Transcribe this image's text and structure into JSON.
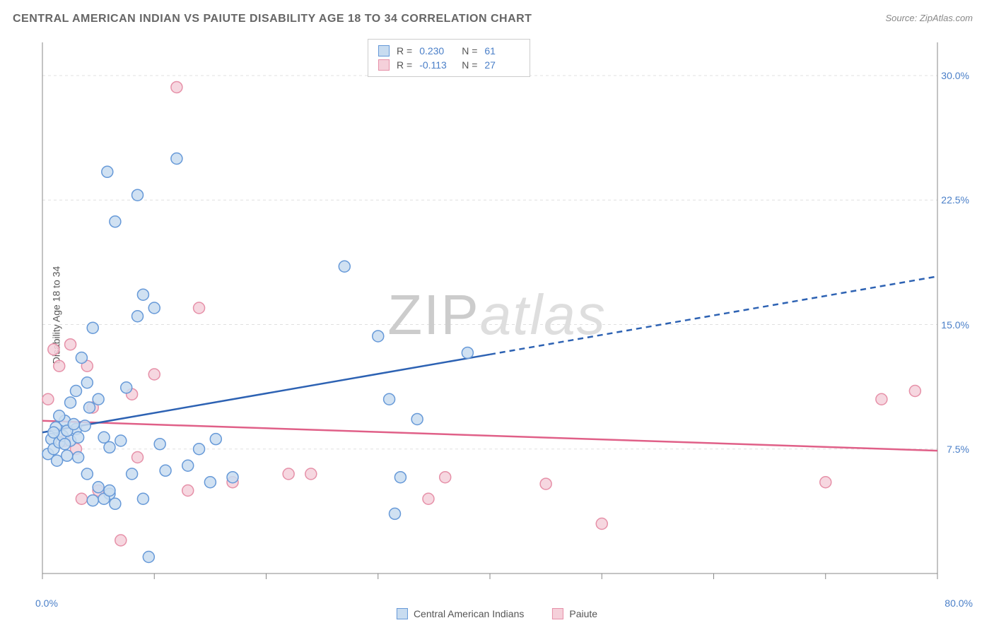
{
  "title": "CENTRAL AMERICAN INDIAN VS PAIUTE DISABILITY AGE 18 TO 34 CORRELATION CHART",
  "source": "Source: ZipAtlas.com",
  "y_axis_label": "Disability Age 18 to 34",
  "watermark": {
    "zip": "ZIP",
    "atlas": "atlas"
  },
  "chart": {
    "type": "scatter",
    "background_color": "#ffffff",
    "grid_color": "#e0e0e0",
    "axis_line_color": "#888888",
    "x_axis": {
      "min": 0,
      "max": 80,
      "ticks": [
        0,
        10,
        20,
        30,
        40,
        50,
        60,
        70,
        80
      ],
      "label_min": "0.0%",
      "label_max": "80.0%",
      "label_color": "#4a7fc8"
    },
    "y_axis": {
      "min": 0,
      "max": 32,
      "grid_ticks": [
        7.5,
        15.0,
        22.5,
        30.0
      ],
      "grid_labels": [
        "7.5%",
        "15.0%",
        "22.5%",
        "30.0%"
      ],
      "label_color": "#4a7fc8"
    },
    "series": [
      {
        "name": "Central American Indians",
        "marker_fill": "#c8dcf0",
        "marker_stroke": "#6699d8",
        "marker_radius": 8,
        "trend_color": "#2d62b3",
        "trend_width": 2.5,
        "trend_start": [
          0,
          8.5
        ],
        "trend_solid_end": [
          40,
          13.2
        ],
        "trend_dash_end": [
          80,
          17.9
        ],
        "R": "0.230",
        "N": "61",
        "points": [
          [
            0.5,
            7.2
          ],
          [
            0.8,
            8.1
          ],
          [
            1.0,
            7.5
          ],
          [
            1.2,
            8.8
          ],
          [
            1.3,
            6.8
          ],
          [
            1.5,
            7.9
          ],
          [
            1.8,
            8.3
          ],
          [
            2.0,
            9.2
          ],
          [
            2.2,
            7.1
          ],
          [
            2.5,
            8.0
          ],
          [
            2.5,
            10.3
          ],
          [
            3.0,
            8.7
          ],
          [
            3.0,
            11.0
          ],
          [
            3.2,
            7.0
          ],
          [
            3.5,
            13.0
          ],
          [
            4.0,
            11.5
          ],
          [
            4.0,
            6.0
          ],
          [
            4.5,
            14.8
          ],
          [
            4.5,
            4.4
          ],
          [
            5.0,
            10.5
          ],
          [
            5.0,
            5.2
          ],
          [
            5.5,
            8.2
          ],
          [
            5.8,
            24.2
          ],
          [
            6.0,
            7.6
          ],
          [
            6.0,
            4.8
          ],
          [
            6.5,
            21.2
          ],
          [
            7.0,
            8.0
          ],
          [
            7.5,
            11.2
          ],
          [
            8.0,
            6.0
          ],
          [
            8.5,
            15.5
          ],
          [
            8.5,
            22.8
          ],
          [
            9.0,
            16.8
          ],
          [
            9.0,
            4.5
          ],
          [
            9.5,
            1.0
          ],
          [
            10.0,
            16.0
          ],
          [
            10.5,
            7.8
          ],
          [
            11.0,
            6.2
          ],
          [
            12.0,
            25.0
          ],
          [
            13.0,
            6.5
          ],
          [
            14.0,
            7.5
          ],
          [
            15.0,
            5.5
          ],
          [
            15.5,
            8.1
          ],
          [
            17.0,
            5.8
          ],
          [
            27.0,
            18.5
          ],
          [
            30.0,
            14.3
          ],
          [
            31.0,
            10.5
          ],
          [
            31.5,
            3.6
          ],
          [
            32.0,
            5.8
          ],
          [
            33.5,
            9.3
          ],
          [
            38.0,
            13.3
          ],
          [
            1.0,
            8.5
          ],
          [
            1.5,
            9.5
          ],
          [
            2.0,
            7.8
          ],
          [
            2.2,
            8.6
          ],
          [
            2.8,
            9.0
          ],
          [
            3.2,
            8.2
          ],
          [
            3.8,
            8.9
          ],
          [
            4.2,
            10.0
          ],
          [
            5.5,
            4.5
          ],
          [
            6.0,
            5.0
          ],
          [
            6.5,
            4.2
          ]
        ]
      },
      {
        "name": "Paiute",
        "marker_fill": "#f5d0da",
        "marker_stroke": "#e690a8",
        "trend_color": "#e06088",
        "trend_width": 2.5,
        "trend_start": [
          0,
          9.2
        ],
        "trend_end": [
          80,
          7.4
        ],
        "R": "-0.113",
        "N": "27",
        "points": [
          [
            0.5,
            10.5
          ],
          [
            1.0,
            13.5
          ],
          [
            1.5,
            12.5
          ],
          [
            2.0,
            8.0
          ],
          [
            2.5,
            13.8
          ],
          [
            3.0,
            7.5
          ],
          [
            3.5,
            4.5
          ],
          [
            4.0,
            12.5
          ],
          [
            4.5,
            10.0
          ],
          [
            5.0,
            5.0
          ],
          [
            7.0,
            2.0
          ],
          [
            8.0,
            10.8
          ],
          [
            10.0,
            12.0
          ],
          [
            12.0,
            29.3
          ],
          [
            13.0,
            5.0
          ],
          [
            14.0,
            16.0
          ],
          [
            17.0,
            5.5
          ],
          [
            22.0,
            6.0
          ],
          [
            24.0,
            6.0
          ],
          [
            34.5,
            4.5
          ],
          [
            36.0,
            5.8
          ],
          [
            45.0,
            5.4
          ],
          [
            50.0,
            3.0
          ],
          [
            70.0,
            5.5
          ],
          [
            75.0,
            10.5
          ],
          [
            78.0,
            11.0
          ],
          [
            8.5,
            7.0
          ]
        ]
      }
    ]
  },
  "legend": {
    "series1": "Central American Indians",
    "series2": "Paiute"
  },
  "stats_labels": {
    "R": "R =",
    "N": "N ="
  }
}
